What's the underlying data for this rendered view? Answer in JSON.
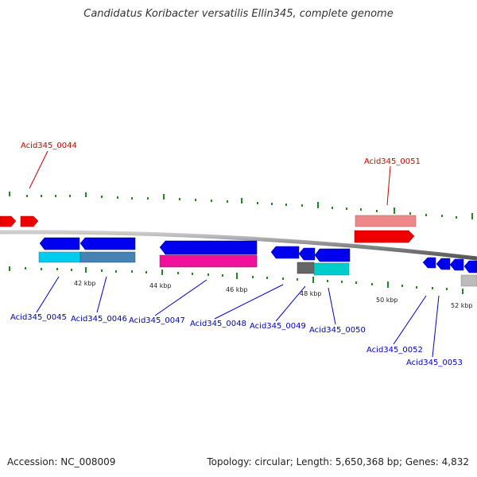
{
  "title": "Candidatus Koribacter versatilis Ellin345, complete genome",
  "footer": {
    "accession": "Accession: NC_008009",
    "topology": "Topology: circular; Length: 5,650,368 bp; Genes: 4,832"
  },
  "kbp_labels": [
    "42 kbp",
    "44 kbp",
    "46 kbp",
    "48 kbp",
    "50 kbp",
    "52 kbp"
  ],
  "gene_labels": {
    "g0044": "Acid345_0044",
    "g0045": "Acid345_0045",
    "g0046": "Acid345_0046",
    "g0047": "Acid345_0047",
    "g0048": "Acid345_0048",
    "g0049": "Acid345_0049",
    "g0050": "Acid345_0050",
    "g0051": "Acid345_0051",
    "g0052": "Acid345_0052",
    "g0053": "Acid345_0053"
  },
  "colors": {
    "forward_label": "#cc0000",
    "reverse_label": "#0000bb",
    "forward_gene": "#ff0000",
    "reverse_gene": "#0000ee",
    "backbone": "#888888",
    "tick": "#228822"
  }
}
